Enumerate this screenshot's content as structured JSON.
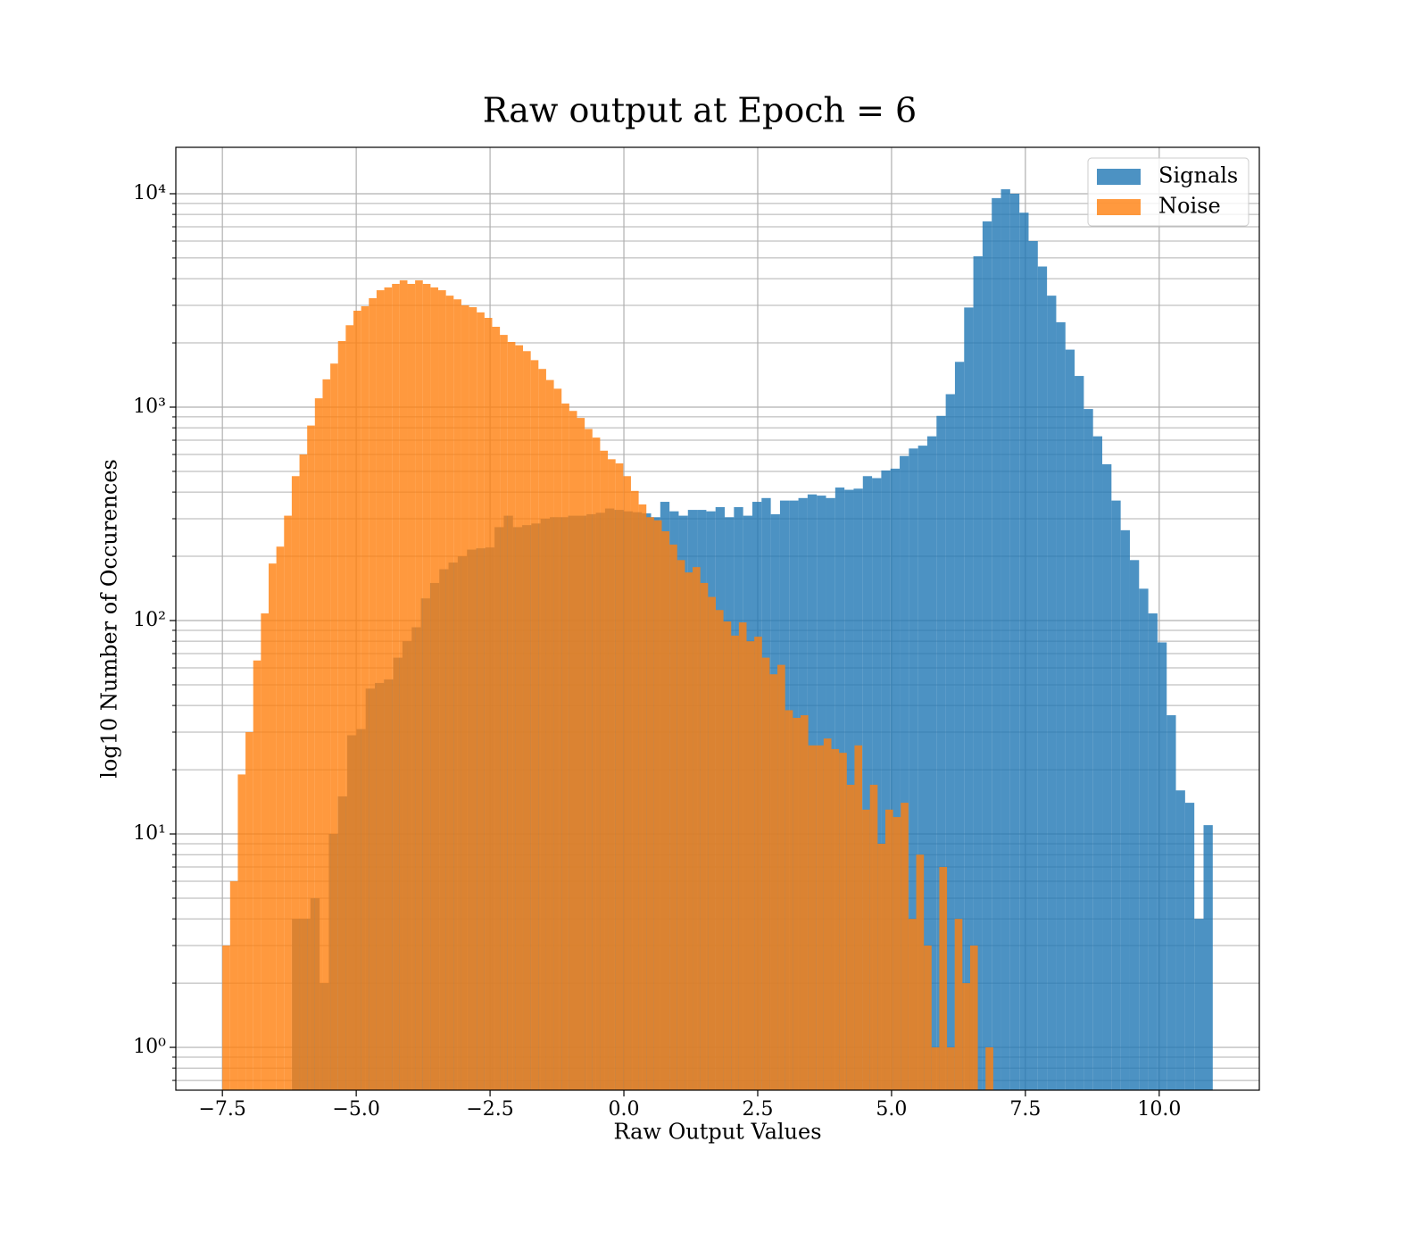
{
  "chart_data": {
    "type": "histogram",
    "title": "Raw output at Epoch = 6",
    "xlabel": "Raw Output Values",
    "ylabel": "log10 Number of Occurences",
    "yscale": "log",
    "grid": true,
    "legend": "upper right",
    "alpha": 0.8,
    "xlim": [
      -8.37,
      11.87
    ],
    "ylim": [
      0.63,
      16500
    ],
    "xticks": [
      {
        "value": -7.5,
        "label": "−7.5"
      },
      {
        "value": -5,
        "label": "−5.0"
      },
      {
        "value": -2.5,
        "label": "−2.5"
      },
      {
        "value": 0,
        "label": "0.0"
      },
      2.5,
      {
        "value": 5,
        "label": "5.0"
      },
      7.5,
      {
        "value": 10,
        "label": "10.0"
      }
    ],
    "yticks": [
      {
        "value": 1,
        "label": "10⁰"
      },
      {
        "value": 10,
        "label": "10¹"
      },
      {
        "value": 100,
        "label": "10²"
      },
      {
        "value": 1000,
        "label": "10³"
      },
      {
        "value": 10000,
        "label": "10⁴"
      }
    ],
    "yminorticks": [
      0.7,
      0.8,
      0.9,
      2,
      3,
      4,
      5,
      6,
      7,
      8,
      9,
      20,
      30,
      40,
      50,
      60,
      70,
      80,
      90,
      200,
      300,
      400,
      500,
      600,
      700,
      800,
      900,
      2000,
      3000,
      4000,
      5000,
      6000,
      7000,
      8000,
      9000
    ],
    "series": [
      {
        "name": "Signals",
        "color": "#1f77b4",
        "bins": [
          -6.2,
          -6.028,
          -5.856,
          -5.684,
          -5.512,
          -5.34,
          -5.168,
          -4.996,
          -4.824,
          -4.652,
          -4.48,
          -4.308,
          -4.136,
          -3.964,
          -3.792,
          -3.62,
          -3.448,
          -3.276,
          -3.104,
          -2.932,
          -2.76,
          -2.588,
          -2.416,
          -2.244,
          -2.072,
          -1.9,
          -1.728,
          -1.556,
          -1.384,
          -1.212,
          -1.04,
          -0.868,
          -0.696,
          -0.524,
          -0.352,
          -0.18,
          -0.008,
          0.164,
          0.336,
          0.508,
          0.68,
          0.852,
          1.024,
          1.196,
          1.368,
          1.54,
          1.712,
          1.884,
          2.056,
          2.228,
          2.4,
          2.572,
          2.744,
          2.916,
          3.088,
          3.26,
          3.432,
          3.604,
          3.776,
          3.948,
          4.12,
          4.292,
          4.464,
          4.636,
          4.808,
          4.98,
          5.152,
          5.324,
          5.496,
          5.668,
          5.84,
          6.012,
          6.184,
          6.356,
          6.528,
          6.7,
          6.872,
          7.044,
          7.216,
          7.388,
          7.56,
          7.732,
          7.904,
          8.076,
          8.248,
          8.42,
          8.592,
          8.764,
          8.936,
          9.108,
          9.28,
          9.452,
          9.624,
          9.796,
          9.968,
          10.14,
          10.312,
          10.484,
          10.656,
          10.828,
          11.0
        ],
        "values": [
          4,
          4,
          5,
          2,
          10,
          15,
          29,
          31,
          48,
          51,
          53,
          67,
          80,
          93,
          127,
          150,
          174,
          187,
          200,
          215,
          218,
          220,
          274,
          310,
          274,
          280,
          285,
          300,
          305,
          305,
          310,
          310,
          315,
          320,
          335,
          330,
          325,
          322,
          318,
          305,
          360,
          325,
          310,
          330,
          330,
          325,
          340,
          305,
          340,
          310,
          360,
          375,
          315,
          365,
          365,
          375,
          390,
          385,
          375,
          420,
          410,
          415,
          475,
          465,
          505,
          515,
          590,
          640,
          660,
          730,
          910,
          1150,
          1630,
          2930,
          5090,
          7420,
          9540,
          10500,
          10000,
          8150,
          6000,
          4560,
          3330,
          2500,
          1860,
          1400,
          980,
          730,
          540,
          365,
          265,
          192,
          141,
          108,
          79,
          36,
          16,
          14,
          4,
          11
        ]
      },
      {
        "name": "Noise",
        "color": "#ff7f0e",
        "bins": [
          -7.5,
          -7.356,
          -7.212,
          -7.068,
          -6.924,
          -6.78,
          -6.636,
          -6.492,
          -6.348,
          -6.204,
          -6.06,
          -5.916,
          -5.772,
          -5.628,
          -5.484,
          -5.34,
          -5.196,
          -5.052,
          -4.908,
          -4.764,
          -4.62,
          -4.476,
          -4.332,
          -4.188,
          -4.044,
          -3.9,
          -3.756,
          -3.612,
          -3.468,
          -3.324,
          -3.18,
          -3.036,
          -2.892,
          -2.748,
          -2.604,
          -2.46,
          -2.316,
          -2.172,
          -2.028,
          -1.884,
          -1.74,
          -1.596,
          -1.452,
          -1.308,
          -1.164,
          -1.02,
          -0.876,
          -0.732,
          -0.588,
          -0.444,
          -0.3,
          -0.156,
          -0.012,
          0.132,
          0.276,
          0.42,
          0.564,
          0.708,
          0.852,
          0.996,
          1.14,
          1.284,
          1.428,
          1.572,
          1.716,
          1.86,
          2.004,
          2.148,
          2.292,
          2.436,
          2.58,
          2.724,
          2.868,
          3.012,
          3.156,
          3.3,
          3.444,
          3.588,
          3.732,
          3.876,
          4.02,
          4.164,
          4.308,
          4.452,
          4.596,
          4.74,
          4.884,
          5.028,
          5.172,
          5.316,
          5.46,
          5.604,
          5.748,
          5.892,
          6.036,
          6.18,
          6.324,
          6.468,
          6.612,
          6.756,
          6.9
        ],
        "values": [
          3,
          6,
          19,
          30,
          65,
          108,
          185,
          222,
          310,
          475,
          600,
          820,
          1100,
          1350,
          1600,
          2040,
          2420,
          2830,
          2970,
          3240,
          3530,
          3640,
          3780,
          3930,
          3780,
          3930,
          3780,
          3640,
          3530,
          3330,
          3200,
          3000,
          2940,
          2780,
          2620,
          2380,
          2180,
          2020,
          1950,
          1830,
          1660,
          1510,
          1340,
          1220,
          1040,
          960,
          890,
          790,
          720,
          625,
          570,
          545,
          475,
          405,
          350,
          305,
          295,
          262,
          227,
          192,
          168,
          178,
          150,
          129,
          112,
          99,
          85,
          98,
          80,
          84,
          67,
          56,
          62,
          38,
          35,
          36,
          26,
          26,
          28,
          25,
          24,
          17,
          26,
          13,
          17,
          9,
          13,
          12,
          14,
          4,
          8,
          3,
          1,
          7,
          1,
          4,
          2,
          3,
          0,
          1
        ]
      }
    ]
  }
}
